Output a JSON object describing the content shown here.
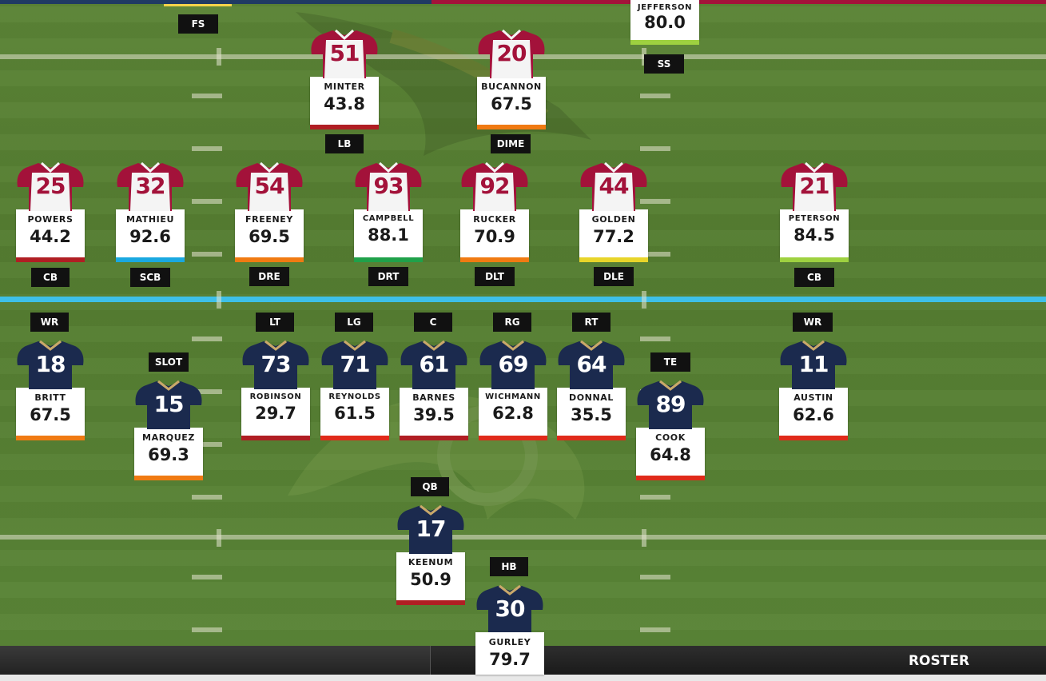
{
  "colors": {
    "away_jersey": "#a3123a",
    "home_jersey": "#1b2a4e",
    "home_trim": "#c9a86a",
    "line_of_scrimmage": "#3ec0e8",
    "rating_red": "#b01e23",
    "rating_orange": "#f07a12",
    "rating_blue": "#1aa8e0",
    "rating_green": "#20a14a",
    "rating_yellow": "#e8d52a",
    "rating_lime": "#9ed140",
    "rating_brightred": "#e02a1a"
  },
  "bottom_bar": {
    "roster_label": "ROSTER"
  },
  "defense": {
    "fs": {
      "position": "FS"
    },
    "ss": {
      "position": "SS"
    },
    "jefferson": {
      "name": "JEFFERSON",
      "rating": "80.0"
    },
    "minter": {
      "number": "51",
      "name": "MINTER",
      "rating": "43.8",
      "position": "LB"
    },
    "bucannon": {
      "number": "20",
      "name": "BUCANNON",
      "rating": "67.5",
      "position": "DIME"
    },
    "powers": {
      "number": "25",
      "name": "POWERS",
      "rating": "44.2",
      "position": "CB"
    },
    "mathieu": {
      "number": "32",
      "name": "MATHIEU",
      "rating": "92.6",
      "position": "SCB"
    },
    "freeney": {
      "number": "54",
      "name": "FREENEY",
      "rating": "69.5",
      "position": "DRE"
    },
    "campbell": {
      "number": "93",
      "name": "CAMPBELL",
      "rating": "88.1",
      "position": "DRT"
    },
    "rucker": {
      "number": "92",
      "name": "RUCKER",
      "rating": "70.9",
      "position": "DLT"
    },
    "golden": {
      "number": "44",
      "name": "GOLDEN",
      "rating": "77.2",
      "position": "DLE"
    },
    "peterson": {
      "number": "21",
      "name": "PETERSON",
      "rating": "84.5",
      "position": "CB"
    }
  },
  "offense": {
    "britt": {
      "number": "18",
      "name": "BRITT",
      "rating": "67.5",
      "position": "WR"
    },
    "marquez": {
      "number": "15",
      "name": "MARQUEZ",
      "rating": "69.3",
      "position": "SLOT"
    },
    "robinson": {
      "number": "73",
      "name": "ROBINSON",
      "rating": "29.7",
      "position": "LT"
    },
    "reynolds": {
      "number": "71",
      "name": "REYNOLDS",
      "rating": "61.5",
      "position": "LG"
    },
    "barnes": {
      "number": "61",
      "name": "BARNES",
      "rating": "39.5",
      "position": "C"
    },
    "wichmann": {
      "number": "69",
      "name": "WICHMANN",
      "rating": "62.8",
      "position": "RG"
    },
    "donnal": {
      "number": "64",
      "name": "DONNAL",
      "rating": "35.5",
      "position": "RT"
    },
    "cook": {
      "number": "89",
      "name": "COOK",
      "rating": "64.8",
      "position": "TE"
    },
    "austin": {
      "number": "11",
      "name": "AUSTIN",
      "rating": "62.6",
      "position": "WR"
    },
    "keenum": {
      "number": "17",
      "name": "KEENUM",
      "rating": "50.9",
      "position": "QB"
    },
    "gurley": {
      "number": "30",
      "name": "GURLEY",
      "rating": "79.7",
      "position": "HB"
    }
  }
}
